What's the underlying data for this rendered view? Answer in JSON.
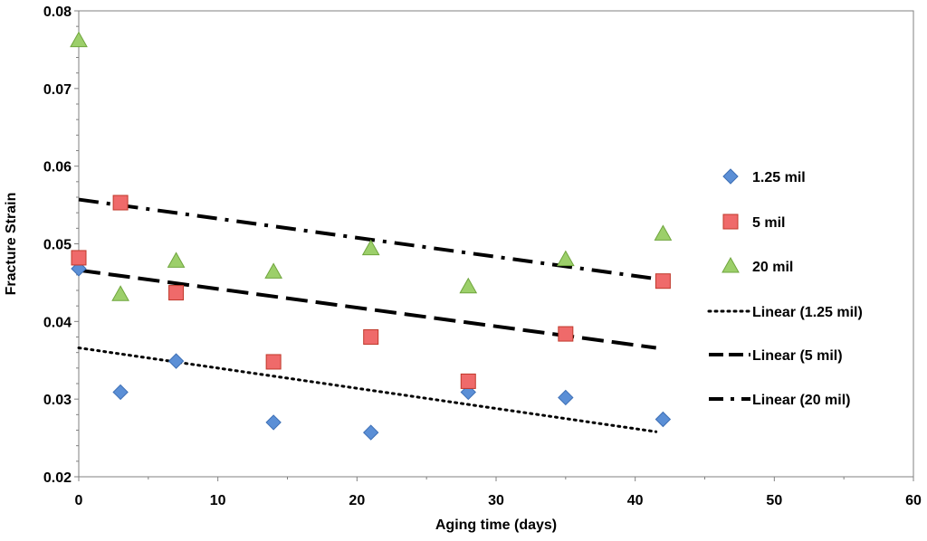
{
  "chart_data": {
    "type": "scatter",
    "title": "",
    "xlabel": "Aging time (days)",
    "ylabel": "Fracture Strain",
    "xlim": [
      0,
      60
    ],
    "ylim": [
      0.02,
      0.08
    ],
    "xticks": [
      0,
      10,
      20,
      30,
      40,
      50,
      60
    ],
    "yticks": [
      0.02,
      0.03,
      0.04,
      0.05,
      0.06,
      0.07,
      0.08
    ],
    "xtick_labels": [
      "0",
      "10",
      "20",
      "30",
      "40",
      "50",
      "60"
    ],
    "ytick_labels": [
      "0.02",
      "0.03",
      "0.04",
      "0.05",
      "0.06",
      "0.07",
      "0.08"
    ],
    "grid": false,
    "legend_position": "right",
    "series": [
      {
        "name": "1.25 mil",
        "marker": "diamond",
        "color": "#5b8fd6",
        "stroke": "#3d6fb5",
        "x": [
          0,
          3,
          7,
          14,
          21,
          28,
          35,
          42
        ],
        "y": [
          0.0468,
          0.0309,
          0.0349,
          0.027,
          0.0257,
          0.0309,
          0.0302,
          0.0274
        ]
      },
      {
        "name": "5 mil",
        "marker": "square",
        "color": "#ef6a6a",
        "stroke": "#c0392b",
        "x": [
          0,
          3,
          7,
          14,
          21,
          28,
          35,
          42
        ],
        "y": [
          0.0482,
          0.0553,
          0.0437,
          0.0348,
          0.038,
          0.0323,
          0.0384,
          0.0452
        ]
      },
      {
        "name": "20 mil",
        "marker": "triangle",
        "color": "#9ccf6a",
        "stroke": "#6fa53d",
        "x": [
          0,
          3,
          7,
          14,
          21,
          28,
          35,
          42
        ],
        "y": [
          0.0762,
          0.0435,
          0.0478,
          0.0464,
          0.0494,
          0.0445,
          0.048,
          0.0513
        ]
      }
    ],
    "trendlines": [
      {
        "name": "Linear (1.25 mil)",
        "style": "dotted",
        "x": [
          0,
          41.5
        ],
        "y": [
          0.0366,
          0.0258
        ]
      },
      {
        "name": "Linear (5 mil)",
        "style": "dashed",
        "x": [
          0,
          41.5
        ],
        "y": [
          0.0466,
          0.0366
        ]
      },
      {
        "name": "Linear (20 mil)",
        "style": "dashdot",
        "x": [
          0,
          41.5
        ],
        "y": [
          0.0557,
          0.0455
        ]
      }
    ]
  }
}
